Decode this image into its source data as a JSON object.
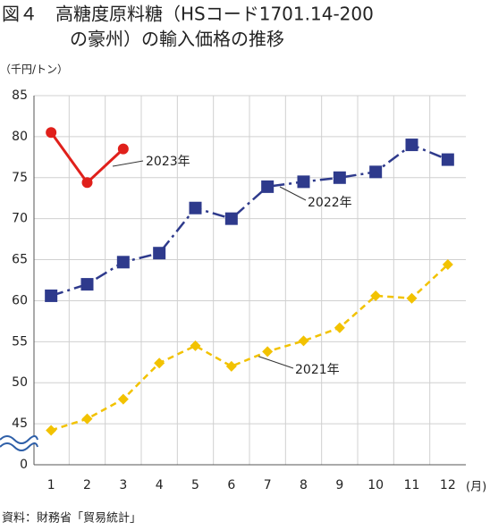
{
  "chart_data": {
    "type": "line",
    "title": [
      "図４　高糖度原料糖（HSコード1701.14-200",
      "の豪州）の輸入価格の推移"
    ],
    "y_label": "（千円/トン）",
    "x_label": "(月)",
    "source": "資料：財務省「貿易統計」",
    "categories": [
      "1",
      "2",
      "3",
      "4",
      "5",
      "6",
      "7",
      "8",
      "9",
      "10",
      "11",
      "12"
    ],
    "series": [
      {
        "name": "2023年",
        "color": "#e0201b",
        "marker": "circle",
        "dash": "solid",
        "values": [
          80.5,
          74.4,
          78.5,
          null,
          null,
          null,
          null,
          null,
          null,
          null,
          null,
          null
        ]
      },
      {
        "name": "2022年",
        "color": "#2e3a8c",
        "marker": "square",
        "dash": "dashdot",
        "values": [
          60.6,
          62.0,
          64.7,
          65.8,
          71.3,
          70.0,
          73.9,
          74.5,
          75.0,
          75.7,
          79.0,
          77.2
        ]
      },
      {
        "name": "2021年",
        "color": "#f2c200",
        "marker": "diamond",
        "dash": "dashed",
        "values": [
          44.2,
          45.6,
          48.0,
          52.4,
          54.5,
          52.0,
          53.8,
          55.1,
          56.7,
          60.6,
          60.3,
          64.4
        ]
      }
    ],
    "ylim": [
      40,
      85
    ],
    "yticks": [
      0,
      45,
      50,
      55,
      60,
      65,
      70,
      75,
      80,
      85
    ],
    "axis_break": true,
    "grid": true
  }
}
